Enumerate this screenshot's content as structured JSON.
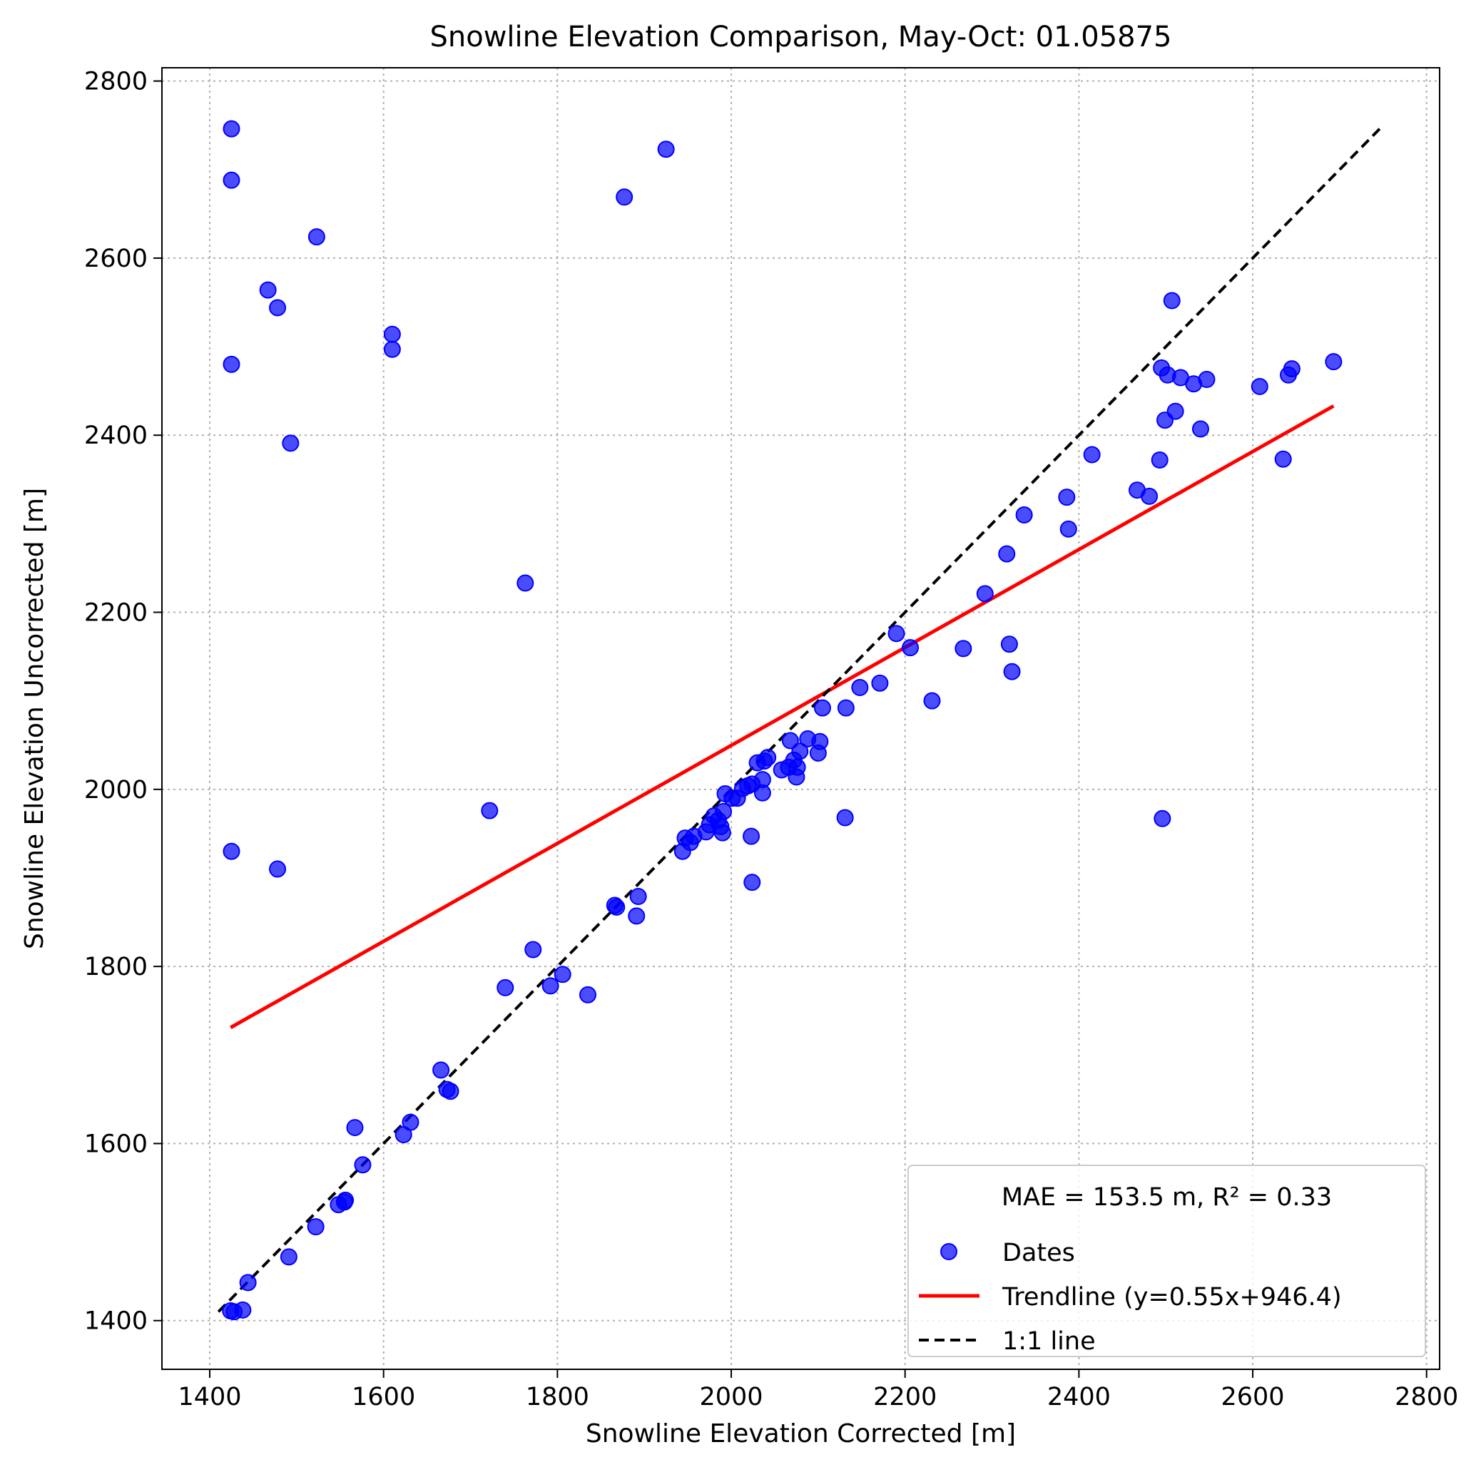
{
  "chart_data": {
    "type": "scatter",
    "title": "Snowline Elevation Comparison, May-Oct: 01.05875",
    "xlabel": "Snowline Elevation Corrected [m]",
    "ylabel": "Snowline Elevation Uncorrected [m]",
    "xlim": [
      1345,
      2815
    ],
    "ylim": [
      1345,
      2815
    ],
    "xticks": [
      1400,
      1600,
      1800,
      2000,
      2200,
      2400,
      2600,
      2800
    ],
    "yticks": [
      1400,
      1600,
      1800,
      2000,
      2200,
      2400,
      2600,
      2800
    ],
    "xtick_labels": [
      "1400",
      "1600",
      "1800",
      "2000",
      "2200",
      "2400",
      "2600",
      "2800"
    ],
    "ytick_labels": [
      "1400",
      "1600",
      "1800",
      "2000",
      "2200",
      "2400",
      "2600",
      "2800"
    ],
    "grid": true,
    "legend_position": "lower-right",
    "legend_title": "MAE = 153.5 m,  R² = 0.33",
    "colors": {
      "points": "#0000ff",
      "trendline": "#ff0000",
      "identity": "#000000",
      "grid": "#b0b0b0"
    },
    "series": [
      {
        "name": "Dates",
        "kind": "scatter",
        "x": [
          1425,
          1425,
          1425,
          1425,
          1478,
          1467,
          1523,
          1493,
          1610,
          1610,
          1478,
          1763,
          1877,
          1925,
          1722,
          1424,
          1428,
          1438,
          1444,
          1491,
          1522,
          1548,
          1555,
          1556,
          1567,
          1576,
          1623,
          1631,
          1666,
          1673,
          1677,
          1740,
          1772,
          1792,
          1806,
          1835,
          1866,
          1868,
          1891,
          1893,
          1944,
          1947,
          1953,
          1957,
          1971,
          1975,
          1980,
          1985,
          1988,
          1990,
          1991,
          1993,
          2001,
          2007,
          2013,
          2019,
          2023,
          2024,
          2024,
          2030,
          2036,
          2036,
          2038,
          2042,
          2058,
          2066,
          2068,
          2072,
          2075,
          2076,
          2079,
          2088,
          2100,
          2102,
          2105,
          2131,
          2132,
          2148,
          2171,
          2190,
          2206,
          2231,
          2267,
          2292,
          2317,
          2320,
          2323,
          2337,
          2386,
          2388,
          2415,
          2467,
          2481,
          2493,
          2495,
          2496,
          2499,
          2502,
          2507,
          2511,
          2517,
          2532,
          2540,
          2547,
          2608,
          2635,
          2641,
          2645,
          2693
        ],
        "y": [
          2746,
          2688,
          2480,
          1930,
          1910,
          2564,
          2624,
          2391,
          2514,
          2497,
          2544,
          2233,
          2669,
          2723,
          1976,
          1411,
          1410,
          1412,
          1443,
          1472,
          1506,
          1531,
          1534,
          1536,
          1618,
          1576,
          1610,
          1624,
          1683,
          1661,
          1659,
          1776,
          1819,
          1778,
          1791,
          1768,
          1869,
          1867,
          1857,
          1879,
          1930,
          1945,
          1940,
          1947,
          1952,
          1960,
          1970,
          1965,
          1958,
          1951,
          1975,
          1995,
          1990,
          1990,
          2001,
          2004,
          1947,
          1895,
          2006,
          2030,
          1996,
          2011,
          2032,
          2036,
          2022,
          2025,
          2055,
          2033,
          2014,
          2025,
          2043,
          2057,
          2041,
          2054,
          2092,
          1968,
          2092,
          2115,
          2120,
          2176,
          2160,
          2100,
          2159,
          2221,
          2266,
          2164,
          2133,
          2310,
          2330,
          2294,
          2378,
          2338,
          2331,
          2372,
          2476,
          1967,
          2417,
          2468,
          2552,
          2427,
          2465,
          2458,
          2407,
          2463,
          2455,
          2373,
          2468,
          2475,
          2483
        ]
      },
      {
        "name": "Trendline (y=0.55x+946.4)",
        "kind": "line",
        "style": "solid",
        "x": [
          1424,
          2693
        ],
        "y": [
          1731,
          2433
        ]
      },
      {
        "name": "1:1 line",
        "kind": "line",
        "style": "dashed",
        "x": [
          1410,
          2746
        ],
        "y": [
          1410,
          2746
        ]
      }
    ]
  }
}
